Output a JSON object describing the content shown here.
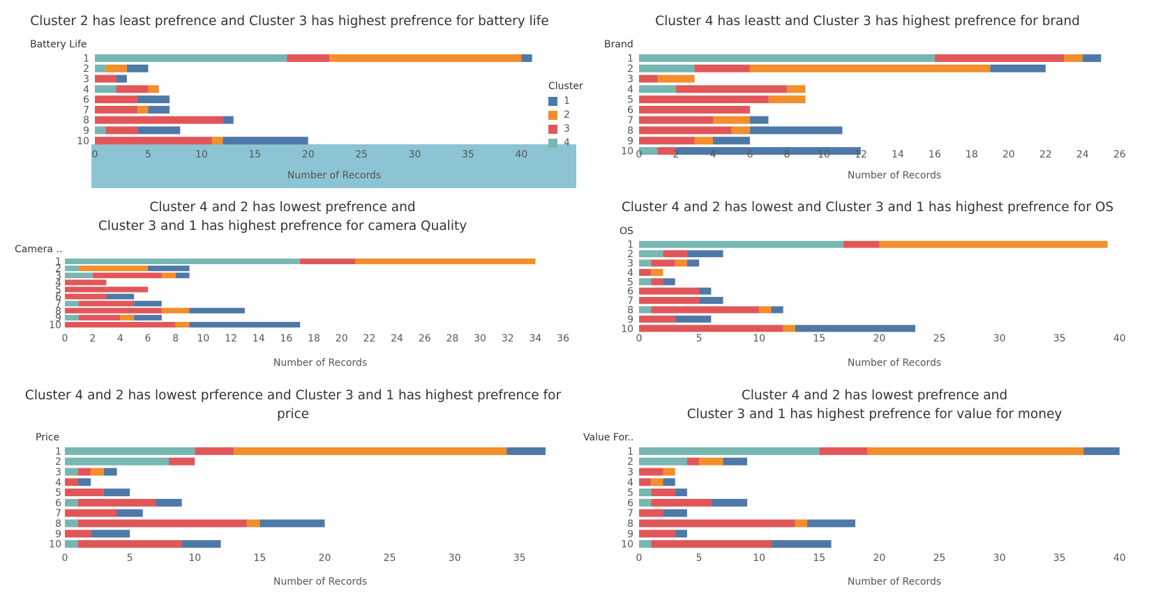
{
  "legend": {
    "title": "Cluster",
    "items": [
      {
        "label": "1",
        "color": "#4e79a7"
      },
      {
        "label": "2",
        "color": "#f28e2b"
      },
      {
        "label": "3",
        "color": "#e15759"
      },
      {
        "label": "4",
        "color": "#76b7b2"
      }
    ]
  },
  "chart_data": [
    {
      "type": "bar",
      "orientation": "horizontal",
      "stacked": true,
      "title": "Cluster 2 has least prefrence and Cluster 3 has highest prefrence for battery life",
      "ylabel": "Battery Life",
      "xlabel": "Number of Records",
      "xlim": [
        0,
        42
      ],
      "xticks": [
        "0",
        "5",
        "10",
        "15",
        "20",
        "25",
        "30",
        "35",
        "40"
      ],
      "categories": [
        "1",
        "2",
        "3",
        "4",
        "6",
        "7",
        "8",
        "9",
        "10"
      ],
      "series": [
        {
          "name": "4",
          "values": [
            18,
            1,
            0,
            2,
            0,
            0,
            0,
            1,
            0
          ]
        },
        {
          "name": "3",
          "values": [
            4,
            0,
            2,
            3,
            4,
            4,
            12,
            3,
            11
          ]
        },
        {
          "name": "2",
          "values": [
            18,
            2,
            0,
            1,
            0,
            1,
            0,
            0,
            1
          ]
        },
        {
          "name": "1",
          "values": [
            1,
            2,
            1,
            0,
            3,
            2,
            1,
            4,
            8
          ]
        }
      ]
    },
    {
      "type": "bar",
      "orientation": "horizontal",
      "stacked": true,
      "title": "Cluster 4 has leastt and Cluster 3 has highest prefrence for brand",
      "ylabel": "Brand",
      "xlabel": "Number of Records",
      "xlim": [
        0,
        26.5
      ],
      "xticks": [
        "0",
        "2",
        "4",
        "6",
        "8",
        "10",
        "12",
        "14",
        "16",
        "18",
        "20",
        "22",
        "24",
        "26"
      ],
      "categories": [
        "1",
        "2",
        "3",
        "4",
        "5",
        "6",
        "7",
        "8",
        "9",
        "10"
      ],
      "series": [
        {
          "name": "4",
          "values": [
            16,
            3,
            0,
            2,
            0,
            0,
            0,
            0,
            0,
            1
          ]
        },
        {
          "name": "3",
          "values": [
            7,
            3,
            1,
            6,
            7,
            6,
            4,
            5,
            3,
            1
          ]
        },
        {
          "name": "2",
          "values": [
            1,
            13,
            2,
            1,
            2,
            0,
            2,
            1,
            1,
            0
          ]
        },
        {
          "name": "1",
          "values": [
            1,
            3,
            0,
            0,
            0,
            0,
            1,
            5,
            2,
            10
          ]
        }
      ]
    },
    {
      "type": "bar",
      "orientation": "horizontal",
      "stacked": true,
      "title": "Cluster 4 and 2 has lowest prefrence and\nCluster 3 and 1 has highest prefrence for camera Quality",
      "ylabel": "Camera ..",
      "xlabel": "Number of Records",
      "xlim": [
        0,
        36.5
      ],
      "xticks": [
        "0",
        "2",
        "4",
        "6",
        "8",
        "10",
        "12",
        "14",
        "16",
        "18",
        "20",
        "22",
        "24",
        "26",
        "28",
        "30",
        "32",
        "34",
        "36"
      ],
      "categories": [
        "1",
        "2",
        "3",
        "4",
        "5",
        "6",
        "7",
        "8",
        "9",
        "10"
      ],
      "series": [
        {
          "name": "4",
          "values": [
            17,
            1,
            2,
            0,
            0,
            0,
            1,
            0,
            1,
            0
          ]
        },
        {
          "name": "3",
          "values": [
            4,
            0,
            5,
            3,
            6,
            3,
            4,
            7,
            3,
            8
          ]
        },
        {
          "name": "2",
          "values": [
            13,
            5,
            1,
            0,
            0,
            0,
            0,
            2,
            1,
            1
          ]
        },
        {
          "name": "1",
          "values": [
            0,
            3,
            1,
            0,
            0,
            2,
            2,
            4,
            2,
            8
          ]
        }
      ]
    },
    {
      "type": "bar",
      "orientation": "horizontal",
      "stacked": true,
      "title": "Cluster 4 and 2 has lowest and Cluster 3 and 1 has highest prefrence for OS",
      "ylabel": "OS",
      "xlabel": "Number of Records",
      "xlim": [
        0,
        41
      ],
      "xticks": [
        "0",
        "5",
        "10",
        "15",
        "20",
        "25",
        "30",
        "35",
        "40"
      ],
      "categories": [
        "1",
        "2",
        "3",
        "4",
        "5",
        "6",
        "7",
        "8",
        "9",
        "10"
      ],
      "series": [
        {
          "name": "4",
          "values": [
            17,
            2,
            1,
            0,
            1,
            0,
            0,
            1,
            0,
            0
          ]
        },
        {
          "name": "3",
          "values": [
            3,
            2,
            2,
            1,
            1,
            5,
            5,
            9,
            3,
            12
          ]
        },
        {
          "name": "2",
          "values": [
            19,
            0,
            1,
            1,
            0,
            0,
            0,
            1,
            0,
            1
          ]
        },
        {
          "name": "1",
          "values": [
            0,
            3,
            1,
            0,
            1,
            1,
            2,
            1,
            3,
            10
          ]
        }
      ]
    },
    {
      "type": "bar",
      "orientation": "horizontal",
      "stacked": true,
      "title": "Cluster 4 and 2 has lowest prference and Cluster 3 and 1 has highest prefrence for\nprice",
      "ylabel": "Price",
      "xlabel": "Number of Records",
      "xlim": [
        0,
        38.5
      ],
      "xticks": [
        "0",
        "5",
        "10",
        "15",
        "20",
        "25",
        "30",
        "35"
      ],
      "categories": [
        "1",
        "2",
        "3",
        "4",
        "5",
        "6",
        "7",
        "8",
        "9",
        "10"
      ],
      "series": [
        {
          "name": "4",
          "values": [
            10,
            8,
            1,
            0,
            0,
            1,
            0,
            1,
            0,
            1
          ]
        },
        {
          "name": "3",
          "values": [
            3,
            2,
            1,
            1,
            3,
            6,
            4,
            13,
            2,
            8
          ]
        },
        {
          "name": "2",
          "values": [
            21,
            0,
            1,
            0,
            0,
            0,
            0,
            1,
            0,
            0
          ]
        },
        {
          "name": "1",
          "values": [
            3,
            0,
            1,
            1,
            2,
            2,
            2,
            5,
            3,
            3
          ]
        }
      ]
    },
    {
      "type": "bar",
      "orientation": "horizontal",
      "stacked": true,
      "title": "Cluster 4 and 2 has lowest prefrence and\nCluster 3 and 1 has highest prefrence for value for money",
      "ylabel": "Value For..",
      "xlabel": "Number of Records",
      "xlim": [
        0,
        41
      ],
      "xticks": [
        "0",
        "5",
        "10",
        "15",
        "20",
        "25",
        "30",
        "35",
        "40"
      ],
      "categories": [
        "1",
        "2",
        "3",
        "4",
        "5",
        "6",
        "7",
        "8",
        "9",
        "10"
      ],
      "series": [
        {
          "name": "4",
          "values": [
            15,
            4,
            0,
            0,
            1,
            1,
            0,
            0,
            0,
            1
          ]
        },
        {
          "name": "3",
          "values": [
            4,
            1,
            2,
            1,
            2,
            5,
            2,
            13,
            3,
            10
          ]
        },
        {
          "name": "2",
          "values": [
            18,
            2,
            1,
            1,
            0,
            0,
            0,
            1,
            0,
            0
          ]
        },
        {
          "name": "1",
          "values": [
            3,
            2,
            0,
            1,
            1,
            3,
            2,
            4,
            1,
            5
          ]
        }
      ]
    }
  ]
}
